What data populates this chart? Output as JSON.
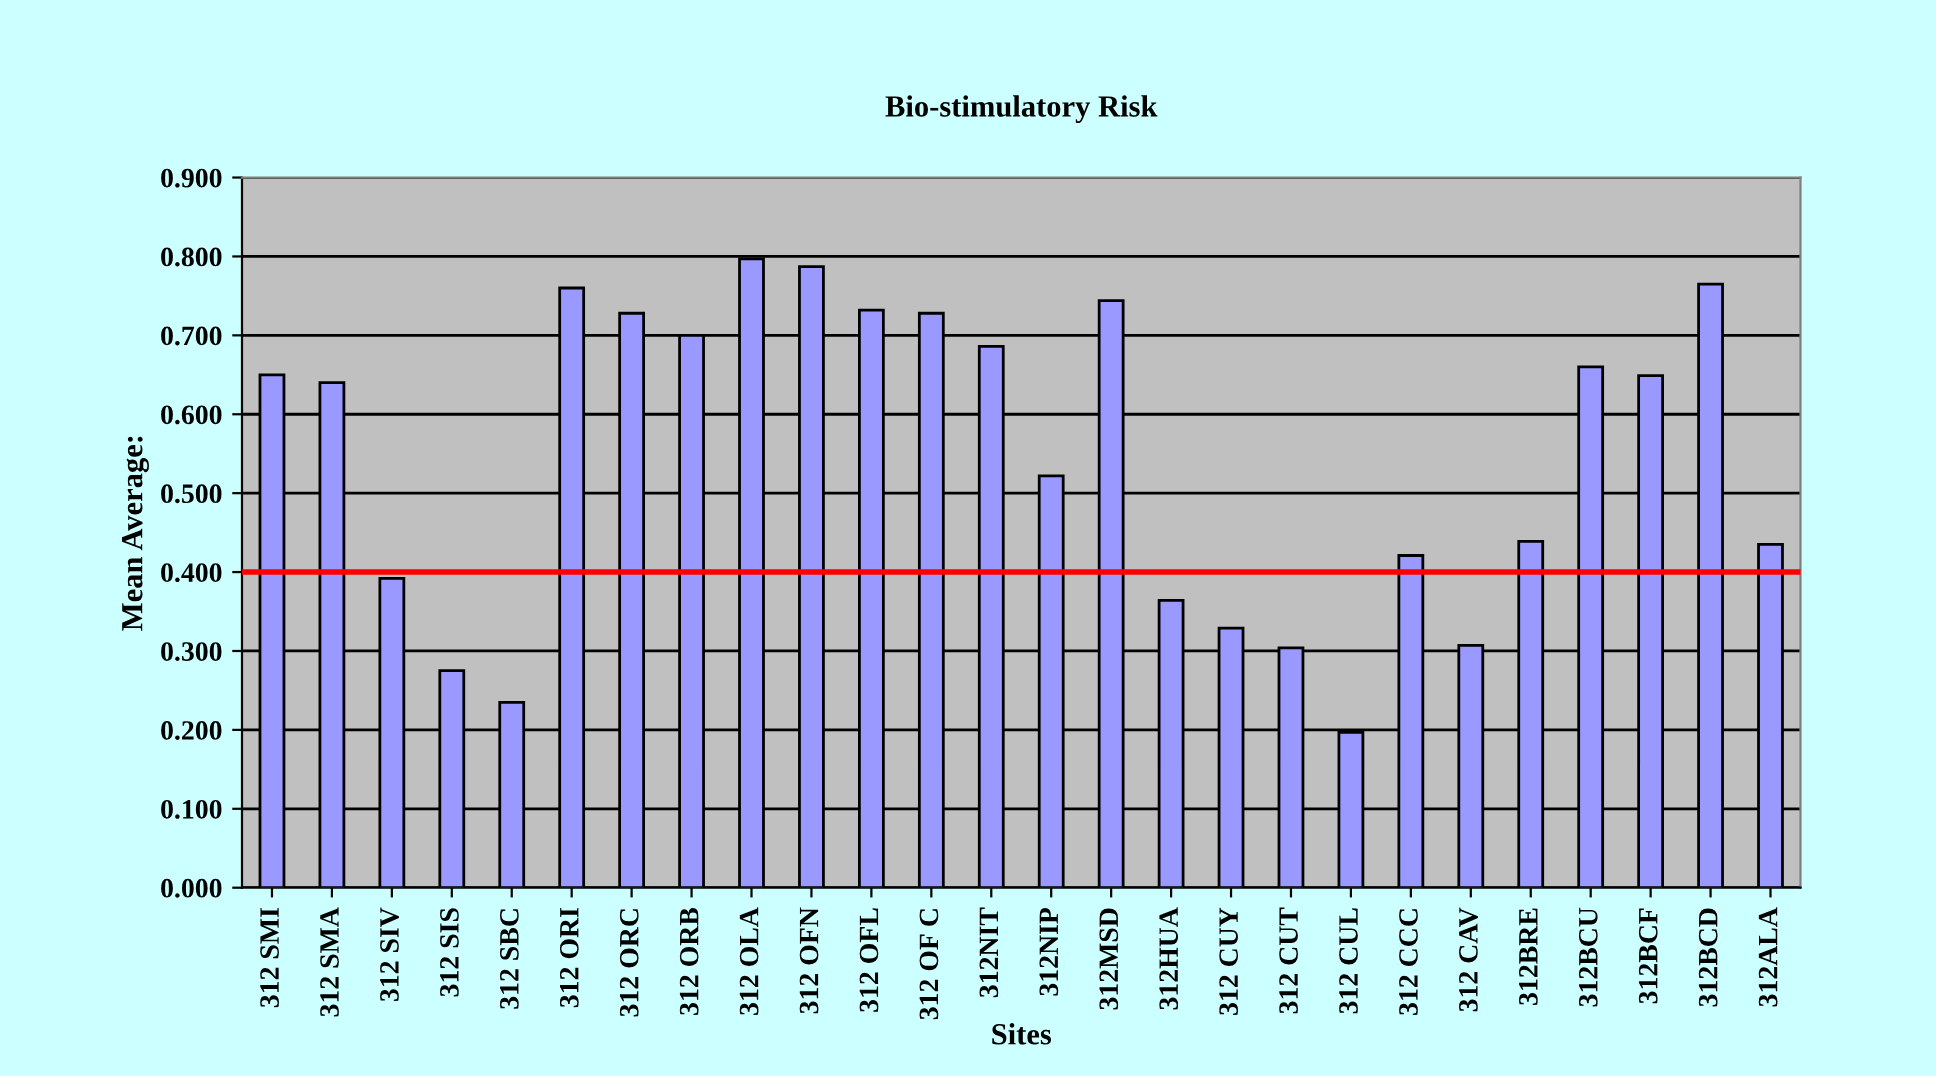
{
  "chart_data": {
    "type": "bar",
    "title": "Bio-stimulatory Risk",
    "xlabel": "Sites",
    "ylabel": "Mean Average:",
    "categories": [
      "312 SMI",
      "312 SMA",
      "312 SIV",
      "312 SIS",
      "312 SBC",
      "312 ORI",
      "312 ORC",
      "312 ORB",
      "312 OLA",
      "312 OFN",
      "312 OFL",
      "312 OF C",
      "312NIT",
      "312NIP",
      "312MSD",
      "312HUA",
      "312 CUY",
      "312 CUT",
      "312 CUL",
      "312 CCC",
      "312 CAV",
      "312BRE",
      "312BCU",
      "312BCF",
      "312BCD",
      "312ALA"
    ],
    "values": [
      0.65,
      0.64,
      0.392,
      0.275,
      0.235,
      0.76,
      0.728,
      0.7,
      0.797,
      0.787,
      0.732,
      0.728,
      0.686,
      0.522,
      0.744,
      0.364,
      0.329,
      0.304,
      0.197,
      0.421,
      0.307,
      0.439,
      0.66,
      0.649,
      0.765,
      0.435
    ],
    "color": "#9999ff",
    "ylim": [
      0,
      0.9
    ],
    "yticks": [
      {
        "value": 0,
        "label": "0.000"
      },
      {
        "value": 0.1,
        "label": "0.100"
      },
      {
        "value": 0.2,
        "label": "0.200"
      },
      {
        "value": 0.3,
        "label": "0.300"
      },
      {
        "value": 0.4,
        "label": "0.400"
      },
      {
        "value": 0.5,
        "label": "0.500"
      },
      {
        "value": 0.6,
        "label": "0.600"
      },
      {
        "value": 0.7,
        "label": "0.700"
      },
      {
        "value": 0.8,
        "label": "0.800"
      },
      {
        "value": 0.9,
        "label": "0.900"
      }
    ],
    "grid": "y",
    "ref_lines": [
      {
        "axis": "y",
        "value": 0.4,
        "color": "#ff0000"
      }
    ]
  }
}
